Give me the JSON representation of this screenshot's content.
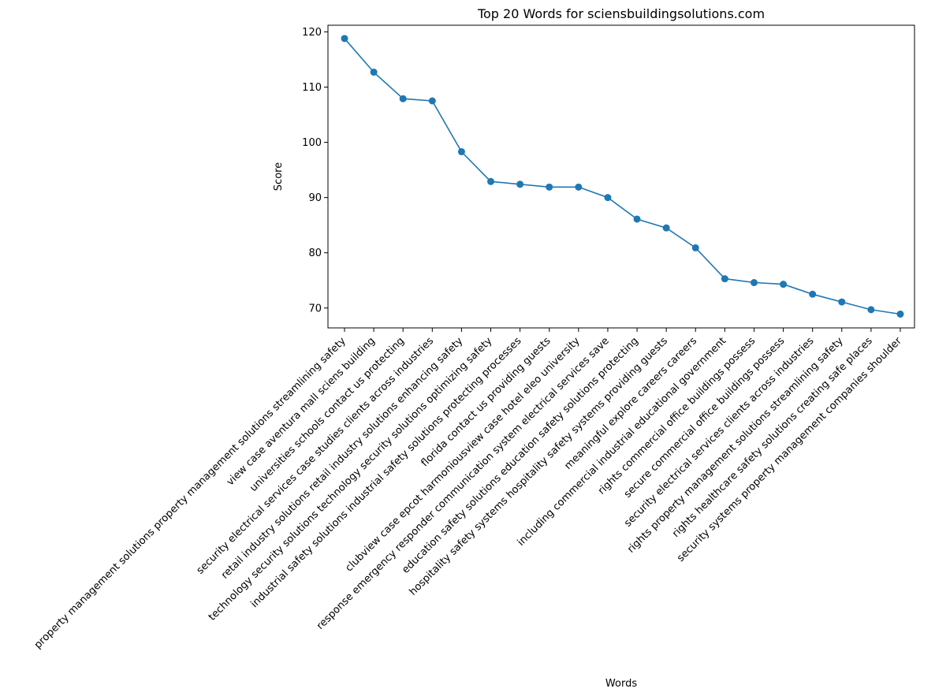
{
  "chart_data": {
    "type": "line",
    "title": "Top 20 Words for sciensbuildingsolutions.com",
    "xlabel": "Words",
    "ylabel": "Score",
    "ylim": [
      66.4,
      121.2
    ],
    "yticks": [
      70,
      80,
      90,
      100,
      110,
      120
    ],
    "grid": false,
    "categories": [
      "property management solutions property management solutions streamlining safety",
      "view case aventura mall sciens building",
      "universities schools contact us protecting",
      "security electrical services case studies clients across industries",
      "retail industry solutions retail industry solutions enhancing safety",
      "technology security solutions technology security solutions optimizing safety",
      "industrial safety solutions industrial safety solutions protecting processes",
      "florida contact us providing guests",
      "clubview case epcot harmoniousview case hotel eleo university",
      "response emergency responder communication system electrical services save",
      "education safety solutions education safety solutions protecting",
      "hospitality safety systems hospitality safety systems providing guests",
      "meaningful explore careers careers",
      "including commercial industrial educational government",
      "rights commercial office buildings possess",
      "secure commercial office buildings possess",
      "security electrical services clients across industries",
      "rights property management solutions streamlining safety",
      "rights healthcare safety solutions creating safe places",
      "security systems property management companies shoulder"
    ],
    "values": [
      118.8,
      112.7,
      107.9,
      107.5,
      98.3,
      92.9,
      92.4,
      91.9,
      91.9,
      90.0,
      86.1,
      84.5,
      80.9,
      75.3,
      74.6,
      74.3,
      72.5,
      71.1,
      69.7,
      68.9
    ],
    "colors": {
      "line": "#1f77b4",
      "marker": "#1f77b4"
    }
  }
}
